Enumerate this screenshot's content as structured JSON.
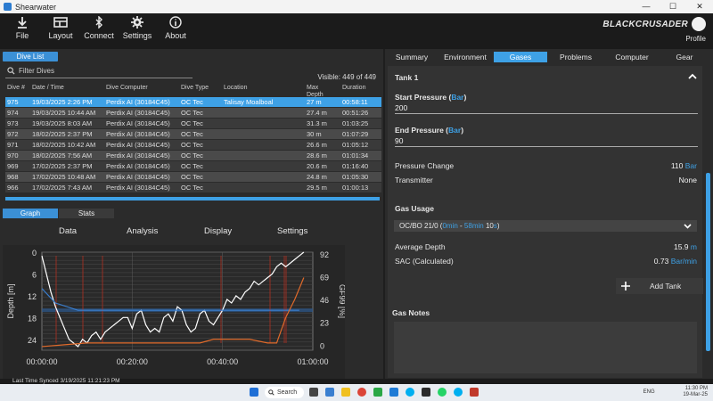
{
  "window": {
    "title": "Shearwater",
    "minimize": "—",
    "maximize": "☐",
    "close": "✕"
  },
  "toolbar": {
    "file": "File",
    "layout": "Layout",
    "connect": "Connect",
    "settings": "Settings",
    "about": "About",
    "user": "BLACKCRUSADER",
    "profile": "Profile"
  },
  "divelist": {
    "tab": "Dive List",
    "filter_placeholder": "Filter Dives",
    "visible": "Visible: 449 of 449",
    "columns": {
      "num": "Dive #",
      "date": "Date / Time",
      "computer": "Dive Computer",
      "type": "Dive Type",
      "location": "Location",
      "depth": "Max Depth",
      "duration": "Duration"
    },
    "rows": [
      {
        "num": "975",
        "date": "19/03/2025 2:26 PM",
        "computer": "Perdix AI (30184C45)",
        "type": "OC Tec",
        "location": "Talisay Moalboal",
        "depth": "27 m",
        "duration": "00:58:11"
      },
      {
        "num": "974",
        "date": "19/03/2025 10:44 AM",
        "computer": "Perdix AI (30184C45)",
        "type": "OC Tec",
        "location": "",
        "depth": "27.4 m",
        "duration": "00:51:26"
      },
      {
        "num": "973",
        "date": "19/03/2025 8:03 AM",
        "computer": "Perdix AI (30184C45)",
        "type": "OC Tec",
        "location": "",
        "depth": "31.3 m",
        "duration": "01:03:25"
      },
      {
        "num": "972",
        "date": "18/02/2025 2:37 PM",
        "computer": "Perdix AI (30184C45)",
        "type": "OC Tec",
        "location": "",
        "depth": "30 m",
        "duration": "01:07:29"
      },
      {
        "num": "971",
        "date": "18/02/2025 10:42 AM",
        "computer": "Perdix AI (30184C45)",
        "type": "OC Tec",
        "location": "",
        "depth": "26.6 m",
        "duration": "01:05:12"
      },
      {
        "num": "970",
        "date": "18/02/2025 7:56 AM",
        "computer": "Perdix AI (30184C45)",
        "type": "OC Tec",
        "location": "",
        "depth": "28.6 m",
        "duration": "01:01:34"
      },
      {
        "num": "969",
        "date": "17/02/2025 2:37 PM",
        "computer": "Perdix AI (30184C45)",
        "type": "OC Tec",
        "location": "",
        "depth": "20.6 m",
        "duration": "01:16:40"
      },
      {
        "num": "968",
        "date": "17/02/2025 10:48 AM",
        "computer": "Perdix AI (30184C45)",
        "type": "OC Tec",
        "location": "",
        "depth": "24.8 m",
        "duration": "01:05:30"
      },
      {
        "num": "966",
        "date": "17/02/2025 7:43 AM",
        "computer": "Perdix AI (30184C45)",
        "type": "OC Tec",
        "location": "",
        "depth": "29.5 m",
        "duration": "01:00:13"
      }
    ]
  },
  "graphpanel": {
    "tabs": [
      "Graph",
      "Stats"
    ],
    "subtabs": [
      "Data",
      "Analysis",
      "Display",
      "Settings"
    ]
  },
  "chart_data": {
    "type": "line",
    "ylabel": "Depth [m]",
    "y2label": "GF99 [%]",
    "yticks": [
      "0",
      "6",
      "12",
      "18",
      "24"
    ],
    "y2ticks": [
      "92",
      "69",
      "46",
      "23",
      "0"
    ],
    "xticks": [
      "00:00:00",
      "00:20:00",
      "00:40:00",
      "01:00:00"
    ],
    "ylim": [
      0,
      27
    ],
    "y2lim": [
      0,
      100
    ],
    "xlim": [
      0,
      60
    ],
    "series": [
      {
        "values_x": [
          0,
          1,
          2,
          3,
          4,
          5,
          6,
          7,
          8,
          9,
          10,
          11,
          12,
          13,
          14,
          15,
          16,
          17,
          18,
          19,
          20,
          21,
          22,
          23,
          24,
          25,
          26,
          27,
          28,
          29,
          30,
          31,
          32,
          33,
          34,
          35,
          36,
          37,
          38,
          39,
          40,
          41,
          42,
          43,
          44,
          45,
          46,
          47,
          48,
          49,
          50,
          51,
          52,
          53,
          54,
          55,
          56,
          57,
          58
        ],
        "values_y": [
          1,
          6,
          11,
          15,
          18,
          21,
          24,
          25,
          26,
          24,
          25,
          23,
          22,
          24,
          22,
          21,
          20,
          19,
          18,
          18,
          21,
          17,
          16,
          20,
          22,
          21,
          22,
          18,
          17,
          19,
          15,
          16,
          20,
          22,
          21,
          17,
          16,
          19,
          20,
          18,
          16,
          13,
          14,
          12,
          13,
          11,
          10,
          8,
          9,
          8,
          7,
          6,
          4,
          3,
          4,
          3,
          2,
          1,
          0
        ],
        "color": "#ffffff"
      },
      {
        "values_x": [
          0,
          3,
          8,
          14,
          20,
          26,
          32,
          38,
          44,
          50,
          54,
          57
        ],
        "values_y": [
          10,
          14,
          16,
          16,
          16,
          16,
          16,
          16,
          16,
          16,
          16,
          16
        ],
        "color": "#3a7fd0"
      },
      {
        "values_x": [
          0,
          5,
          10,
          15,
          20,
          25,
          30,
          35,
          38,
          40,
          43,
          46,
          50,
          52,
          54,
          56,
          58
        ],
        "values_y": [
          26,
          25.5,
          25,
          25,
          25,
          25,
          25,
          25,
          24,
          24,
          24,
          24,
          25,
          25,
          18,
          13,
          7
        ],
        "color": "#e06a2a"
      }
    ],
    "grid": true
  },
  "rightpanel": {
    "tabs": [
      "Summary",
      "Environment",
      "Gases",
      "Problems",
      "Computer",
      "Gear"
    ],
    "tank_title": "Tank 1",
    "start_label": "Start Pressure (",
    "start_unit": "Bar",
    "start_close": ")",
    "start_value": "200",
    "end_label": "End Pressure (",
    "end_unit": "Bar",
    "end_close": ")",
    "end_value": "90",
    "pressure_change_label": "Pressure Change",
    "pressure_change_value": "110",
    "pressure_change_unit": "Bar",
    "transmitter_label": "Transmitter",
    "transmitter_value": "None",
    "gas_usage_title": "Gas Usage",
    "gas_select_prefix": "OC/BO 21/0 (",
    "gas_select_a": "0",
    "gas_select_min1": "min",
    "gas_select_mid": " - ",
    "gas_select_b": "58",
    "gas_select_min2": "min",
    "gas_select_c": " 10",
    "gas_select_s": "s",
    "gas_select_close": ")",
    "avg_depth_label": "Average Depth",
    "avg_depth_value": "15.9",
    "avg_depth_unit": "m",
    "sac_label": "SAC (Calculated)",
    "sac_value": "0.73",
    "sac_unit": "Bar/min",
    "add_tank": "Add Tank",
    "gas_notes": "Gas Notes"
  },
  "statusbar": {
    "text": "Last Time Synced 3/19/2025 11:21:23 PM"
  },
  "taskbar": {
    "search": "Search",
    "lang": "ENG",
    "time": "11:30 PM",
    "date": "19-Mar-25"
  }
}
